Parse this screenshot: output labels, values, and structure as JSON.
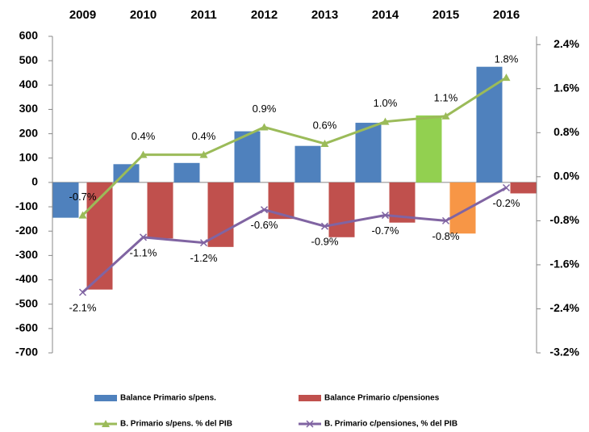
{
  "chart_data": {
    "type": "bar",
    "categories": [
      "2009",
      "2010",
      "2011",
      "2012",
      "2013",
      "2014",
      "2015",
      "2016"
    ],
    "ylim": [
      -700,
      600
    ],
    "yticks": [
      600,
      500,
      400,
      300,
      200,
      100,
      0,
      -100,
      -200,
      -300,
      -400,
      -500,
      -600,
      -700
    ],
    "y2lim": [
      -3.2,
      2.55
    ],
    "y2ticks": [
      {
        "value": 2.4,
        "label": "2.4%"
      },
      {
        "value": 1.6,
        "label": "1.6%"
      },
      {
        "value": 0.8,
        "label": "0.8%"
      },
      {
        "value": 0.0,
        "label": "0.0%"
      },
      {
        "value": -0.8,
        "label": "-0.8%"
      },
      {
        "value": -1.6,
        "label": "-1.6%"
      },
      {
        "value": -2.4,
        "label": "-2.4%"
      },
      {
        "value": -3.2,
        "label": "-3.2%"
      }
    ],
    "legend": "bottom",
    "series": [
      {
        "name": "Balance Primario s/pens.",
        "type": "bar",
        "color": "#4f81bd",
        "colors": [
          "#4f81bd",
          "#4f81bd",
          "#4f81bd",
          "#4f81bd",
          "#4f81bd",
          "#4f81bd",
          "#92d050",
          "#4f81bd"
        ],
        "values": [
          -145,
          75,
          80,
          210,
          150,
          245,
          275,
          475
        ]
      },
      {
        "name": "Balance Primario c/pensiones",
        "type": "bar",
        "color": "#c0504d",
        "colors": [
          "#c0504d",
          "#c0504d",
          "#c0504d",
          "#c0504d",
          "#c0504d",
          "#c0504d",
          "#f79646",
          "#c0504d"
        ],
        "values": [
          -440,
          -230,
          -265,
          -150,
          -225,
          -165,
          -210,
          -45
        ]
      },
      {
        "name": "B. Primario s/pens. % del PIB",
        "type": "line",
        "axis": "y2",
        "marker": "triangle",
        "color": "#9bbb59",
        "values": [
          -0.7,
          0.4,
          0.4,
          0.9,
          0.6,
          1.0,
          1.1,
          1.8
        ],
        "value_labels": [
          "-0.7%",
          "0.4%",
          "0.4%",
          "0.9%",
          "0.6%",
          "1.0%",
          "1.1%",
          "1.8%"
        ]
      },
      {
        "name": "B. Primario c/pensiones, % del PIB",
        "type": "line",
        "axis": "y2",
        "marker": "x",
        "color": "#8064a2",
        "values": [
          -2.1,
          -1.1,
          -1.2,
          -0.6,
          -0.9,
          -0.7,
          -0.8,
          -0.2
        ],
        "value_labels": [
          "-2.1%",
          "-1.1%",
          "-1.2%",
          "-0.6%",
          "-0.9%",
          "-0.7%",
          "-0.8%",
          "-0.2%"
        ]
      }
    ]
  }
}
